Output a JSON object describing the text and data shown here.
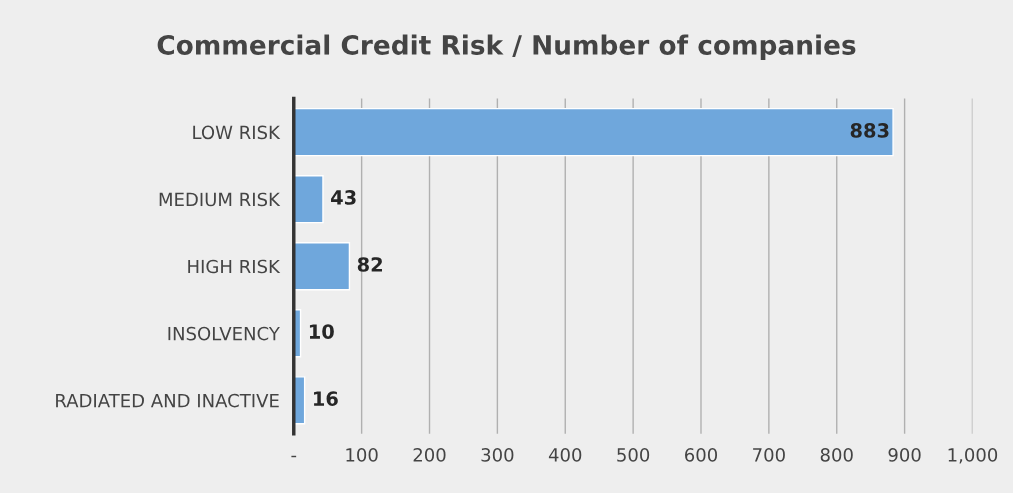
{
  "chart_data": {
    "type": "bar",
    "orientation": "horizontal",
    "title": "Commercial Credit Risk / Number of companies",
    "categories": [
      "LOW RISK",
      "MEDIUM RISK",
      "HIGH RISK",
      "INSOLVENCY",
      "RADIATED AND INACTIVE"
    ],
    "values": [
      883,
      43,
      82,
      10,
      16
    ],
    "color": "#6fa7dc",
    "xlim": [
      0,
      1000
    ],
    "xticks": [
      {
        "value": 0,
        "label": "-"
      },
      100,
      200,
      300,
      400,
      500,
      600,
      700,
      800,
      900,
      {
        "value": 1000,
        "label": "1,000"
      }
    ],
    "grid": "x",
    "data_labels": true
  }
}
